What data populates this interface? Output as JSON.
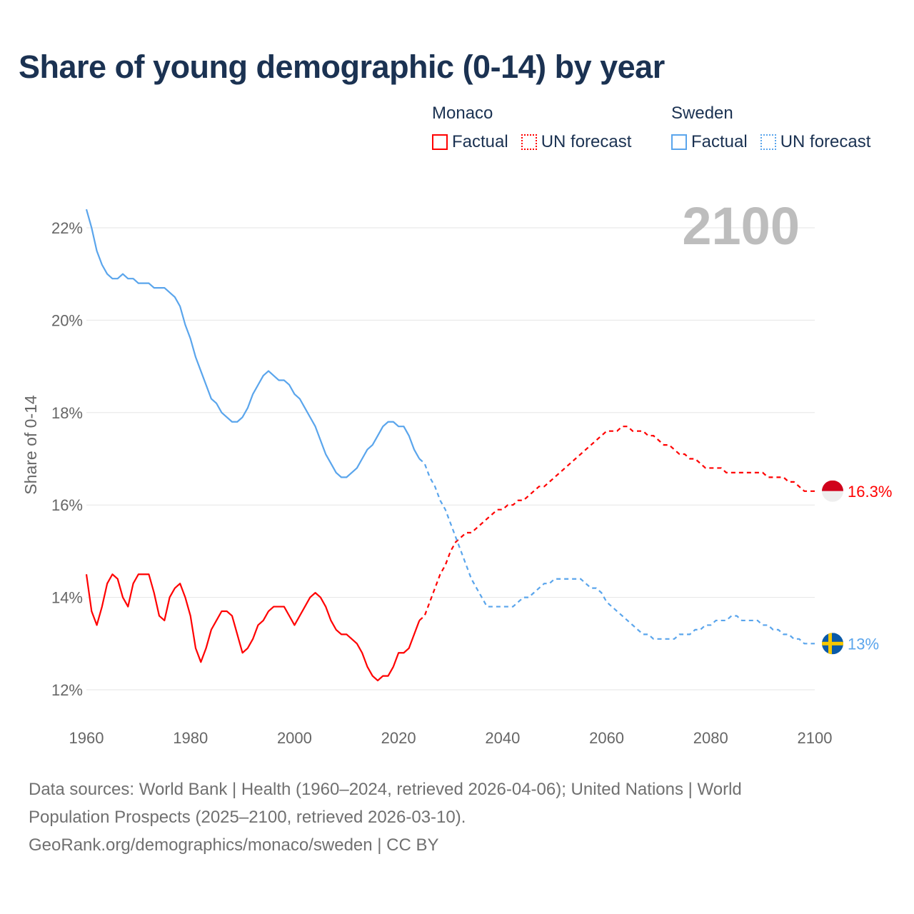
{
  "title": "Share of young demographic (0-14) by year",
  "legend": {
    "groups": [
      {
        "name": "Monaco",
        "factual": "Factual",
        "forecast": "UN forecast"
      },
      {
        "name": "Sweden",
        "factual": "Factual",
        "forecast": "UN forecast"
      }
    ]
  },
  "footer": {
    "line1": "Data sources: World Bank | Health (1960–2024, retrieved 2026-04-06); United Nations | World",
    "line2": "Population Prospects (2025–2100, retrieved 2026-03-10).",
    "line3": "GeoRank.org/demographics/monaco/sweden | CC BY"
  },
  "chart_data": {
    "type": "line",
    "title": "Share of young demographic (0-14) by year",
    "ylabel": "Share of 0-14",
    "xlabel": "",
    "current_year_label": "2100",
    "xlim": [
      1960,
      2100
    ],
    "ylim": [
      11.3,
      22.8
    ],
    "x_ticks": [
      "1960",
      "1980",
      "2000",
      "2020",
      "2040",
      "2060",
      "2080",
      "2100"
    ],
    "y_ticks": [
      12,
      14,
      16,
      18,
      20,
      22
    ],
    "y_tick_labels": [
      "12%",
      "14%",
      "16%",
      "18%",
      "20%",
      "22%"
    ],
    "grid": true,
    "legend_placement": "top-right",
    "series": [
      {
        "name": "Monaco",
        "color": "#ff0000",
        "end_label": "16.3%",
        "factual_start": 1960,
        "factual": [
          14.5,
          13.7,
          13.4,
          13.8,
          14.3,
          14.5,
          14.4,
          14.0,
          13.8,
          14.3,
          14.5,
          14.5,
          14.5,
          14.1,
          13.6,
          13.5,
          14.0,
          14.2,
          14.3,
          14.0,
          13.6,
          12.9,
          12.6,
          12.9,
          13.3,
          13.5,
          13.7,
          13.7,
          13.6,
          13.2,
          12.8,
          12.9,
          13.1,
          13.4,
          13.5,
          13.7,
          13.8,
          13.8,
          13.8,
          13.6,
          13.4,
          13.6,
          13.8,
          14.0,
          14.1,
          14.0,
          13.8,
          13.5,
          13.3,
          13.2,
          13.2,
          13.1,
          13.0,
          12.8,
          12.5,
          12.3,
          12.2,
          12.3,
          12.3,
          12.5,
          12.8,
          12.8,
          12.9,
          13.2,
          13.5
        ],
        "forecast_start": 2025,
        "forecast": [
          13.6,
          13.9,
          14.2,
          14.5,
          14.7,
          15.0,
          15.2,
          15.3,
          15.4,
          15.4,
          15.5,
          15.6,
          15.7,
          15.8,
          15.9,
          15.9,
          16.0,
          16.0,
          16.1,
          16.1,
          16.2,
          16.3,
          16.4,
          16.4,
          16.5,
          16.6,
          16.7,
          16.8,
          16.9,
          17.0,
          17.1,
          17.2,
          17.3,
          17.4,
          17.5,
          17.6,
          17.6,
          17.6,
          17.7,
          17.7,
          17.6,
          17.6,
          17.6,
          17.5,
          17.5,
          17.4,
          17.3,
          17.3,
          17.2,
          17.1,
          17.1,
          17.0,
          17.0,
          16.9,
          16.8,
          16.8,
          16.8,
          16.8,
          16.7,
          16.7,
          16.7,
          16.7,
          16.7,
          16.7,
          16.7,
          16.7,
          16.6,
          16.6,
          16.6,
          16.6,
          16.5,
          16.5,
          16.4,
          16.3,
          16.3,
          16.3
        ]
      },
      {
        "name": "Sweden",
        "color": "#5aa5ec",
        "end_label": "13%",
        "factual_start": 1960,
        "factual": [
          22.4,
          22.0,
          21.5,
          21.2,
          21.0,
          20.9,
          20.9,
          21.0,
          20.9,
          20.9,
          20.8,
          20.8,
          20.8,
          20.7,
          20.7,
          20.7,
          20.6,
          20.5,
          20.3,
          19.9,
          19.6,
          19.2,
          18.9,
          18.6,
          18.3,
          18.2,
          18.0,
          17.9,
          17.8,
          17.8,
          17.9,
          18.1,
          18.4,
          18.6,
          18.8,
          18.9,
          18.8,
          18.7,
          18.7,
          18.6,
          18.4,
          18.3,
          18.1,
          17.9,
          17.7,
          17.4,
          17.1,
          16.9,
          16.7,
          16.6,
          16.6,
          16.7,
          16.8,
          17.0,
          17.2,
          17.3,
          17.5,
          17.7,
          17.8,
          17.8,
          17.7,
          17.7,
          17.5,
          17.2,
          17.0
        ],
        "forecast_start": 2025,
        "forecast": [
          16.9,
          16.6,
          16.4,
          16.1,
          15.9,
          15.6,
          15.3,
          15.0,
          14.7,
          14.4,
          14.2,
          14.0,
          13.8,
          13.8,
          13.8,
          13.8,
          13.8,
          13.8,
          13.9,
          14.0,
          14.0,
          14.1,
          14.2,
          14.3,
          14.3,
          14.4,
          14.4,
          14.4,
          14.4,
          14.4,
          14.4,
          14.3,
          14.2,
          14.2,
          14.1,
          13.9,
          13.8,
          13.7,
          13.6,
          13.5,
          13.4,
          13.3,
          13.2,
          13.2,
          13.1,
          13.1,
          13.1,
          13.1,
          13.1,
          13.2,
          13.2,
          13.2,
          13.3,
          13.3,
          13.4,
          13.4,
          13.5,
          13.5,
          13.5,
          13.6,
          13.6,
          13.5,
          13.5,
          13.5,
          13.5,
          13.4,
          13.4,
          13.3,
          13.3,
          13.2,
          13.2,
          13.1,
          13.1,
          13.0,
          13.0,
          13.0
        ]
      }
    ]
  }
}
